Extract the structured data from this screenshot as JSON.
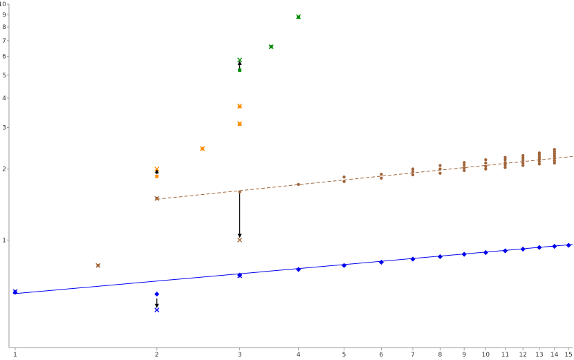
{
  "chart_data": {
    "type": "scatter",
    "title": "",
    "xlabel": "",
    "ylabel": "",
    "xscale": "log",
    "yscale": "log",
    "xlim": [
      0.97,
      15.3
    ],
    "ylim": [
      0.35,
      10
    ],
    "grid": false,
    "legend": "none",
    "x_ticks": [
      1,
      2,
      3,
      4,
      5,
      6,
      7,
      8,
      9,
      10,
      11,
      12,
      13,
      14,
      15
    ],
    "x_tick_labels": [
      "1",
      "2",
      "3",
      "4",
      "5",
      "6",
      "7",
      "8",
      "9",
      "10",
      "11",
      "12",
      "13",
      "14",
      "15"
    ],
    "y_ticks": [
      1,
      2,
      3,
      4,
      5,
      6,
      7,
      8,
      9,
      10
    ],
    "y_tick_labels": [
      "1",
      "2",
      "3",
      "4",
      "5",
      "6",
      "7",
      "8",
      "9",
      "10"
    ],
    "series": [
      {
        "color": "#0000ee",
        "marker": "diamond",
        "points": [
          [
            1,
            0.6
          ],
          [
            2,
            0.59
          ],
          [
            3,
            0.71
          ],
          [
            4,
            0.75
          ],
          [
            5,
            0.78
          ],
          [
            6,
            0.805
          ],
          [
            7,
            0.83
          ],
          [
            8,
            0.85
          ],
          [
            9,
            0.87
          ],
          [
            10,
            0.885
          ],
          [
            11,
            0.9
          ],
          [
            12,
            0.915
          ],
          [
            13,
            0.93
          ],
          [
            14,
            0.94
          ],
          [
            15,
            0.95
          ]
        ]
      },
      {
        "color": "#0000ee",
        "marker": "cross",
        "points": [
          [
            1,
            0.605
          ],
          [
            2,
            0.505
          ],
          [
            3,
            0.705
          ]
        ]
      },
      {
        "color": "#a0653a",
        "marker": "dot",
        "points": [
          [
            1.5,
            0.78
          ],
          [
            2,
            1.5
          ],
          [
            3,
            1.6
          ],
          [
            4,
            1.72
          ],
          [
            5,
            1.77
          ],
          [
            5,
            1.85
          ],
          [
            6,
            1.83
          ],
          [
            6,
            1.9
          ],
          [
            7,
            1.89
          ],
          [
            7,
            1.95
          ],
          [
            7,
            2.0
          ],
          [
            8,
            1.92
          ],
          [
            8,
            2.0
          ],
          [
            8,
            2.07
          ],
          [
            9,
            1.97
          ],
          [
            9,
            2.02
          ],
          [
            9,
            2.08
          ],
          [
            9,
            2.13
          ],
          [
            10,
            2.0
          ],
          [
            10,
            2.05
          ],
          [
            10,
            2.12
          ],
          [
            10,
            2.19
          ],
          [
            11,
            2.03
          ],
          [
            11,
            2.08
          ],
          [
            11,
            2.13
          ],
          [
            11,
            2.19
          ],
          [
            11,
            2.24
          ],
          [
            12,
            2.07
          ],
          [
            12,
            2.12
          ],
          [
            12,
            2.18
          ],
          [
            12,
            2.23
          ],
          [
            12,
            2.28
          ],
          [
            13,
            2.1
          ],
          [
            13,
            2.15
          ],
          [
            13,
            2.2
          ],
          [
            13,
            2.25
          ],
          [
            13,
            2.3
          ],
          [
            13,
            2.34
          ],
          [
            14,
            2.12
          ],
          [
            14,
            2.17
          ],
          [
            14,
            2.22
          ],
          [
            14,
            2.27
          ],
          [
            14,
            2.32
          ],
          [
            14,
            2.37
          ],
          [
            14,
            2.42
          ]
        ]
      },
      {
        "color": "#a0653a",
        "marker": "cross",
        "points": [
          [
            1.5,
            0.78
          ],
          [
            2,
            1.5
          ],
          [
            3,
            1.0
          ]
        ]
      },
      {
        "color": "#ff8c00",
        "marker": "square",
        "points": [
          [
            2,
            1.86
          ],
          [
            2.5,
            2.44
          ],
          [
            3,
            3.1
          ],
          [
            3,
            3.68
          ]
        ]
      },
      {
        "color": "#ff8c00",
        "marker": "cross",
        "points": [
          [
            2,
            2.0
          ],
          [
            2.5,
            2.44
          ],
          [
            3,
            3.12
          ],
          [
            3,
            3.7
          ]
        ]
      },
      {
        "color": "#008c00",
        "marker": "square",
        "points": [
          [
            3,
            5.25
          ],
          [
            3.5,
            6.6
          ],
          [
            4,
            8.8
          ]
        ]
      },
      {
        "color": "#008c00",
        "marker": "cross",
        "points": [
          [
            3,
            5.8
          ],
          [
            3.5,
            6.6
          ],
          [
            4,
            8.85
          ]
        ]
      }
    ],
    "fit_lines": [
      {
        "color": "#0000ee",
        "style": "solid",
        "x": [
          1,
          15.3
        ],
        "y": [
          0.593,
          0.958
        ]
      },
      {
        "color": "#a0653a",
        "style": "dashed",
        "x": [
          2,
          15.3
        ],
        "y": [
          1.49,
          2.26
        ]
      }
    ],
    "arrows": [
      {
        "x": 2,
        "from": 1.9,
        "to": 2.0
      },
      {
        "x": 2,
        "from": 0.565,
        "to": 0.515
      },
      {
        "x": 3,
        "from": 1.58,
        "to": 1.02
      },
      {
        "x": 3,
        "from": 5.3,
        "to": 5.75
      }
    ]
  }
}
